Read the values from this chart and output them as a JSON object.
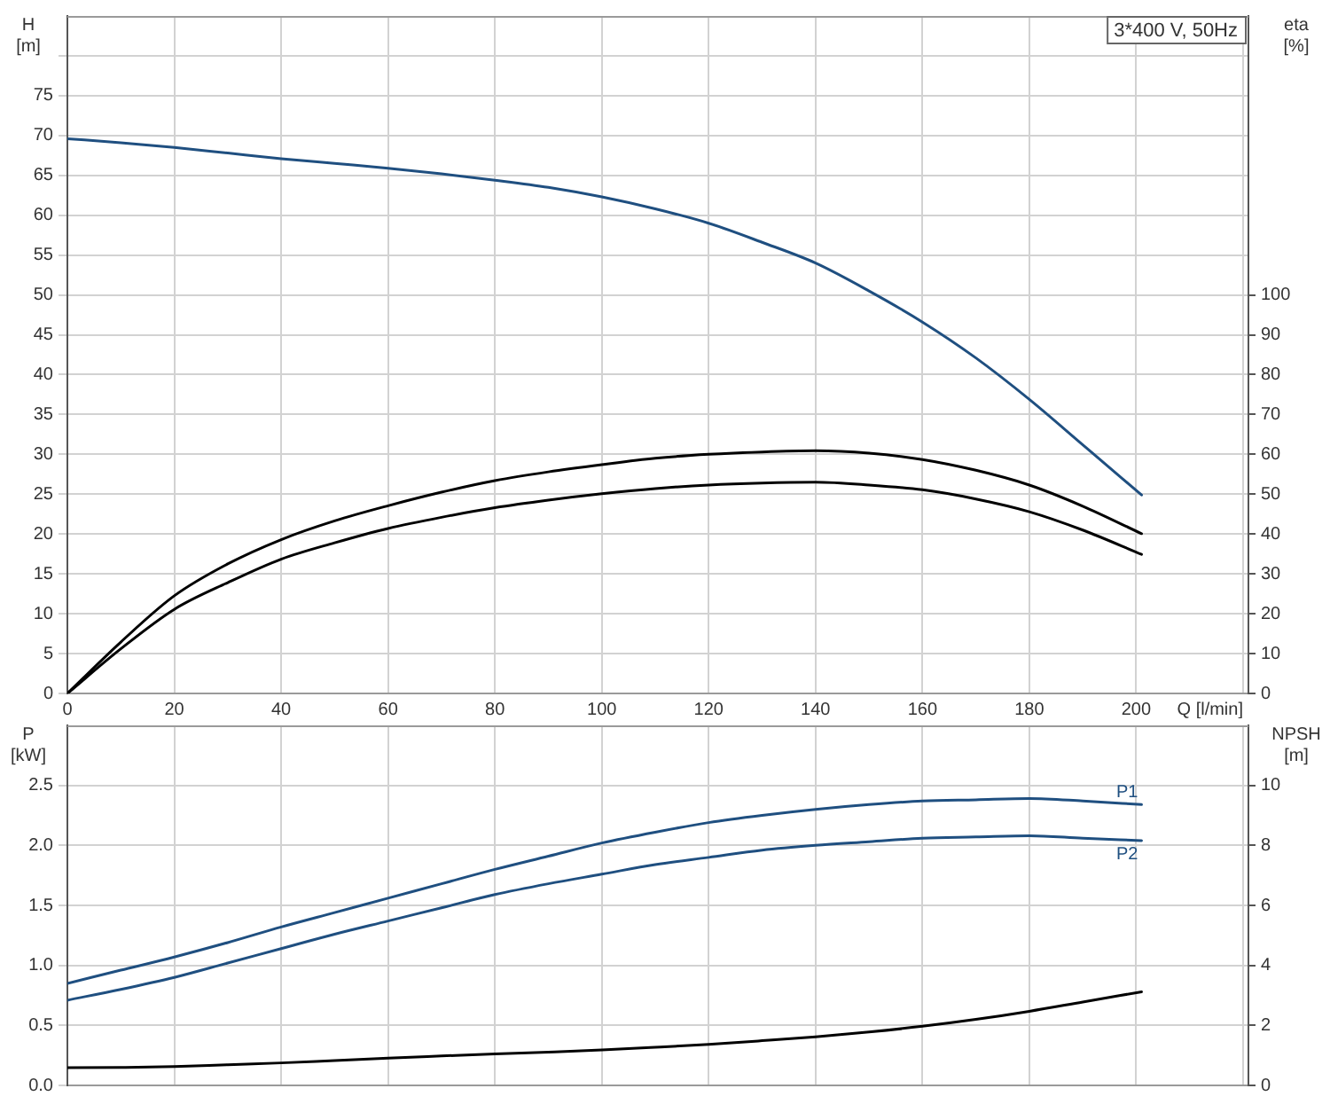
{
  "chart_data": [
    {
      "type": "line",
      "xlabel": "Q [l/min]",
      "ylabel": "H [m]",
      "y2label": "eta [%]",
      "annotations": [
        "3*400 V, 50Hz"
      ],
      "x": [
        0,
        10,
        20,
        30,
        40,
        50,
        60,
        70,
        80,
        90,
        100,
        110,
        120,
        130,
        140,
        150,
        160,
        170,
        180,
        190,
        201
      ],
      "xlim": [
        0,
        221
      ],
      "xticks": [
        0,
        20,
        40,
        60,
        80,
        100,
        120,
        140,
        160,
        180,
        200,
        {
          "value": 220,
          "label": null
        }
      ],
      "ylim": [
        0,
        85
      ],
      "yticks": [
        0,
        5,
        10,
        15,
        20,
        25,
        30,
        35,
        40,
        45,
        50,
        55,
        60,
        65,
        70,
        75,
        {
          "value": 80,
          "label": null
        }
      ],
      "y2lim": [
        0,
        170
      ],
      "y2ticks": [
        0,
        10,
        20,
        30,
        40,
        50,
        60,
        70,
        80,
        90,
        100
      ],
      "series": [
        {
          "color": "#1f4f80",
          "values": [
            69.6,
            69.1,
            68.5,
            67.8,
            67.1,
            66.5,
            65.9,
            65.2,
            64.4,
            63.5,
            62.3,
            60.8,
            59.0,
            56.6,
            54.0,
            50.5,
            46.6,
            42.1,
            36.9,
            31.2,
            24.9
          ]
        },
        {
          "color": "#000000",
          "axis": "y2",
          "values": [
            0,
            12.9,
            24.5,
            32.5,
            38.6,
            43.3,
            47.1,
            50.5,
            53.4,
            55.6,
            57.4,
            59.0,
            60.0,
            60.6,
            60.9,
            60.3,
            58.7,
            56.0,
            52.3,
            47.0,
            40.1
          ]
        },
        {
          "color": "#000000",
          "axis": "y2",
          "values": [
            0,
            11.2,
            21.1,
            27.8,
            33.7,
            37.8,
            41.4,
            44.2,
            46.6,
            48.5,
            50.1,
            51.4,
            52.3,
            52.8,
            53.0,
            52.3,
            51.1,
            48.8,
            45.6,
            41.0,
            34.9
          ]
        }
      ],
      "grid": true,
      "legend": false,
      "marker": "none",
      "line_style": "solid"
    },
    {
      "type": "line",
      "ylabel": "P [kW]",
      "y2label": "NPSH [m]",
      "x": [
        0,
        10,
        20,
        30,
        40,
        50,
        60,
        70,
        80,
        90,
        100,
        110,
        120,
        130,
        140,
        150,
        160,
        170,
        180,
        190,
        201
      ],
      "xlim": [
        0,
        221
      ],
      "xticks": [
        0,
        20,
        40,
        60,
        80,
        100,
        120,
        140,
        160,
        180,
        200,
        {
          "value": 220,
          "label": null
        }
      ],
      "ylim": [
        0,
        3
      ],
      "yticks": [
        {
          "value": 0,
          "label": "0.0"
        },
        0.5,
        {
          "value": 1,
          "label": "1.0"
        },
        1.5,
        {
          "value": 2,
          "label": "2.0"
        },
        2.5
      ],
      "y2lim": [
        0,
        12
      ],
      "y2ticks": [
        0,
        2,
        4,
        6,
        8,
        10
      ],
      "series": [
        {
          "name": "P1",
          "color": "#1f4f80",
          "values": [
            0.85,
            0.96,
            1.07,
            1.19,
            1.32,
            1.44,
            1.56,
            1.68,
            1.8,
            1.91,
            2.02,
            2.11,
            2.19,
            2.25,
            2.3,
            2.34,
            2.37,
            2.38,
            2.39,
            2.37,
            2.34
          ]
        },
        {
          "name": "P2",
          "color": "#1f4f80",
          "values": [
            0.71,
            0.8,
            0.9,
            1.02,
            1.14,
            1.26,
            1.37,
            1.48,
            1.59,
            1.68,
            1.76,
            1.84,
            1.9,
            1.96,
            2.0,
            2.03,
            2.06,
            2.07,
            2.08,
            2.06,
            2.04
          ]
        },
        {
          "color": "#000000",
          "axis": "y2",
          "values": [
            0.59,
            0.6,
            0.63,
            0.69,
            0.75,
            0.83,
            0.91,
            0.98,
            1.05,
            1.11,
            1.18,
            1.27,
            1.37,
            1.49,
            1.62,
            1.78,
            1.97,
            2.2,
            2.47,
            2.78,
            3.12
          ]
        }
      ],
      "grid": true,
      "legend": false,
      "marker": "none",
      "line_style": "solid",
      "tick_labels": "y"
    }
  ]
}
